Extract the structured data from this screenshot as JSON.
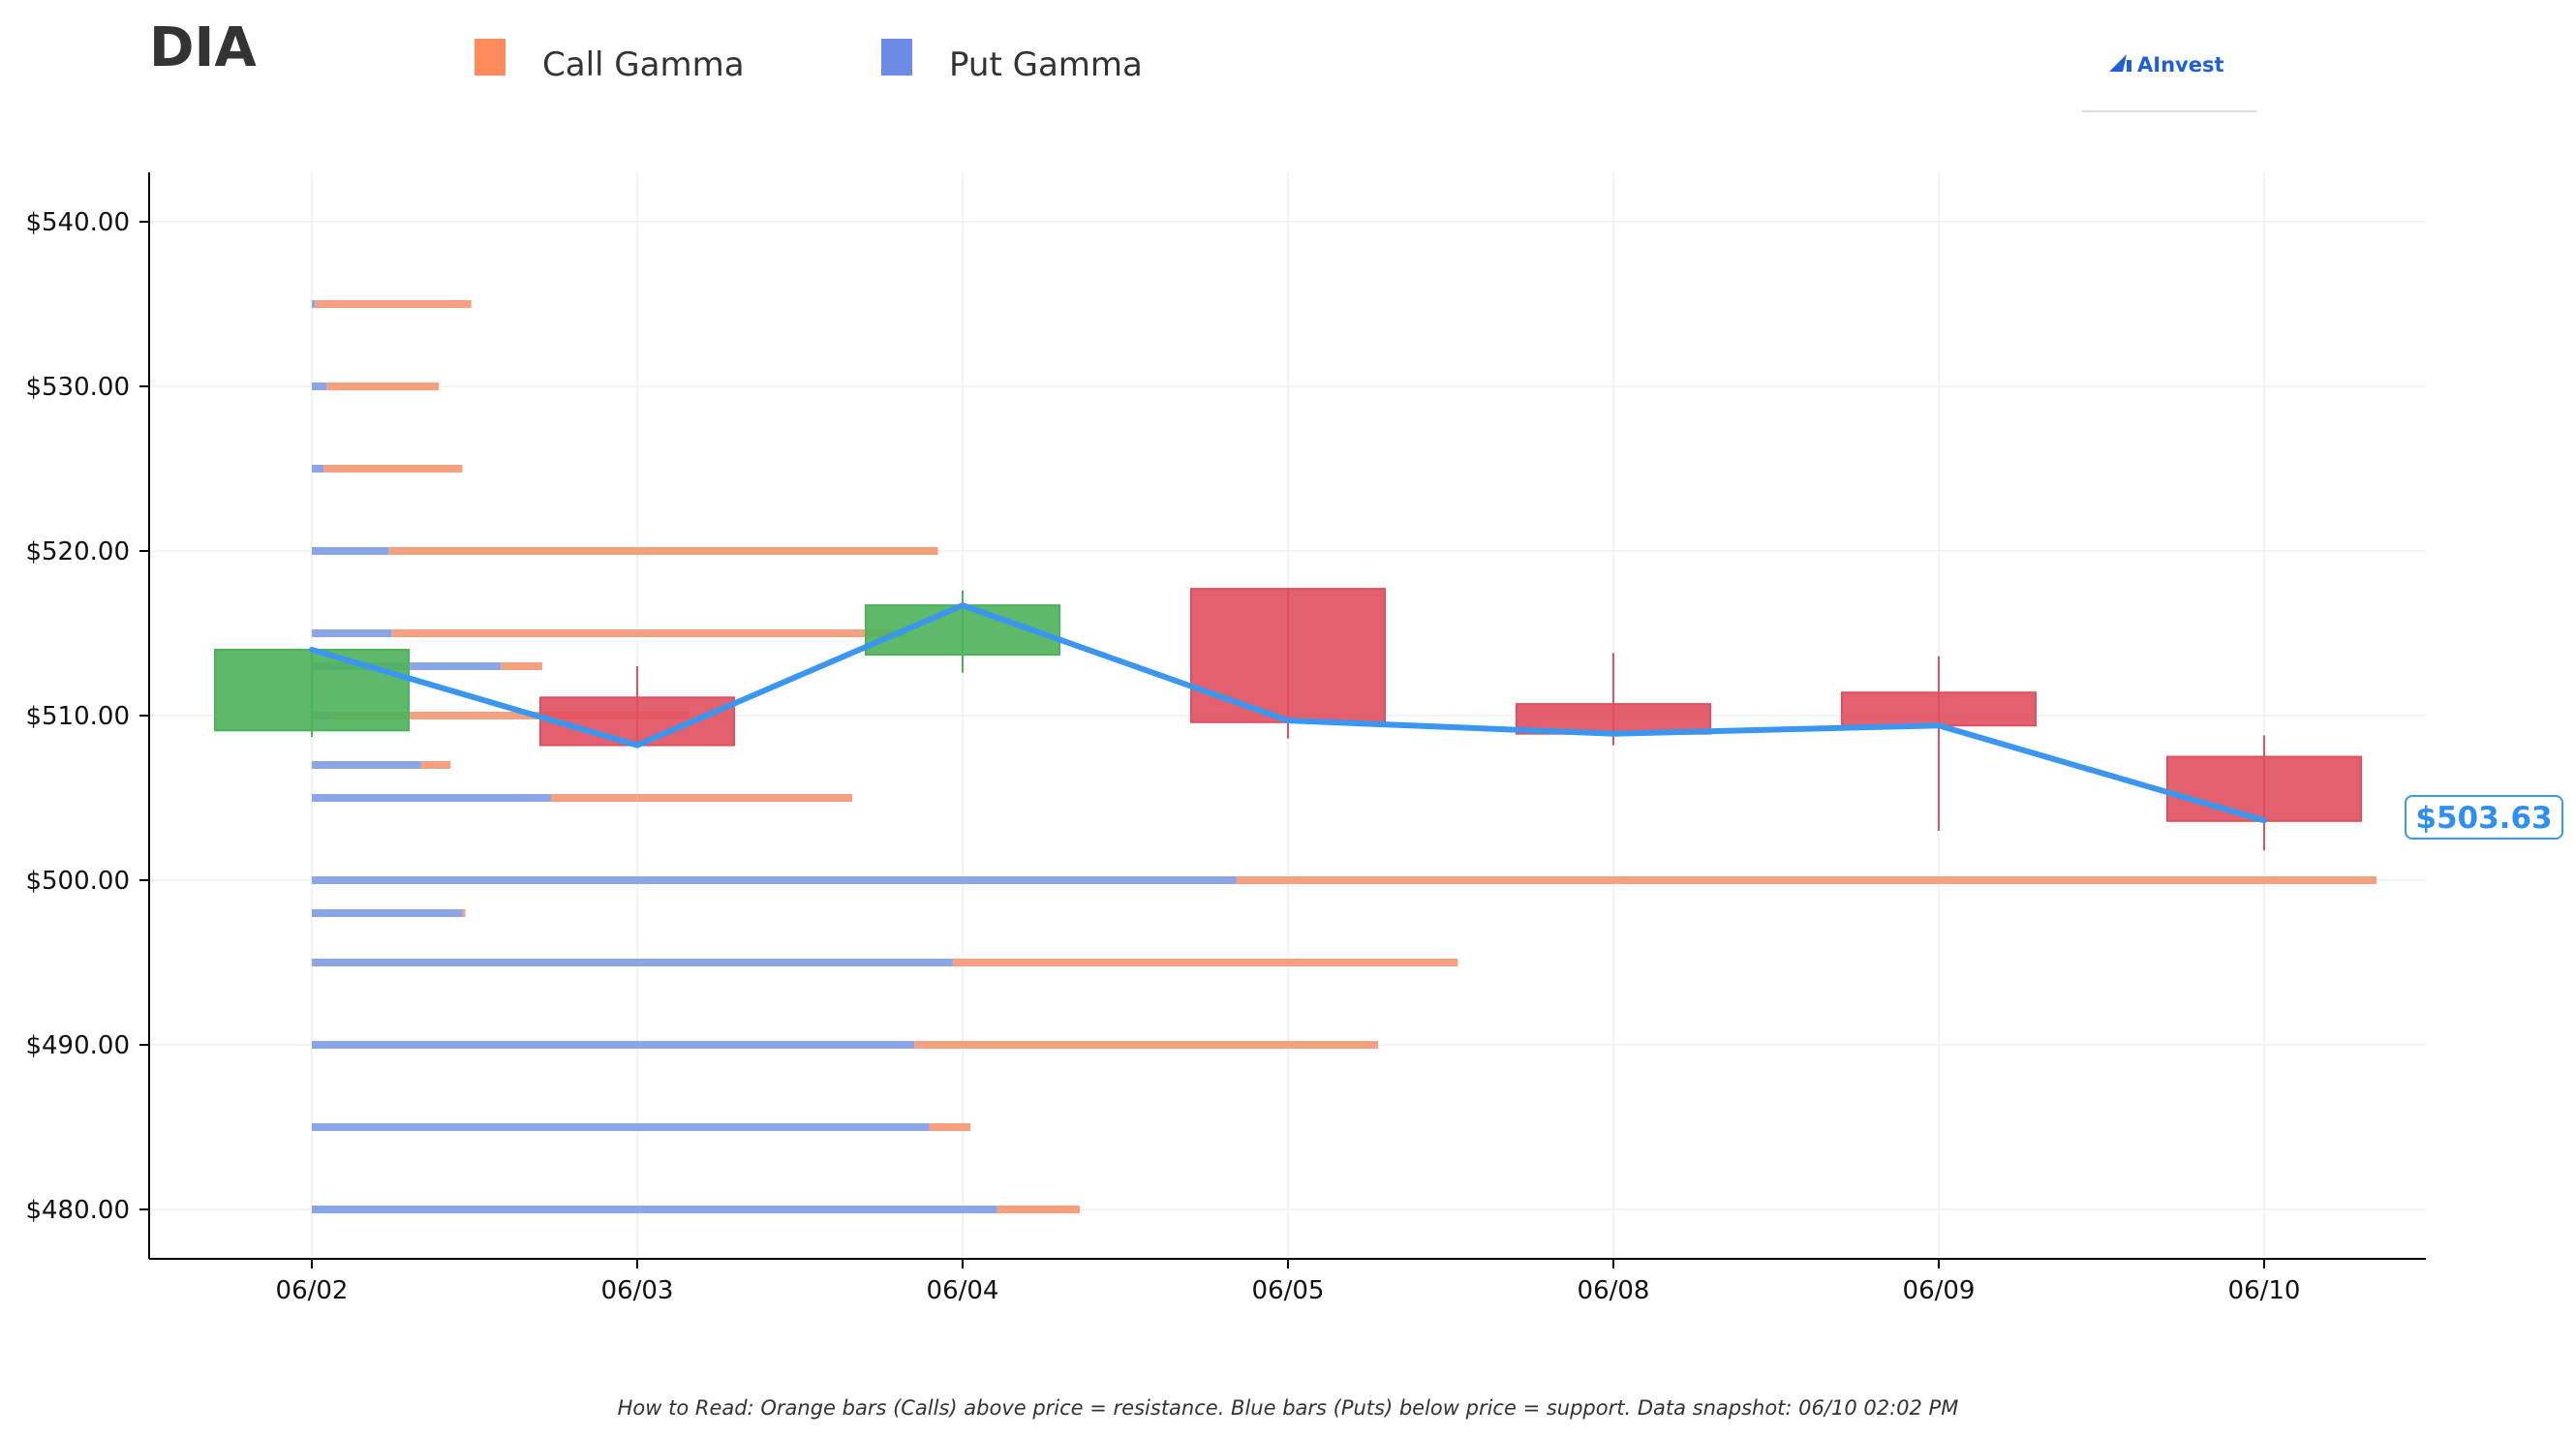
{
  "title": "DIA",
  "legend": [
    {
      "label": "Call Gamma",
      "color": "#ff8a5c"
    },
    {
      "label": "Put Gamma",
      "color": "#6b8be6"
    }
  ],
  "logo": {
    "text": "AInvest",
    "color": "#1f5fd6"
  },
  "footnote": "How to Read: Orange bars (Calls) above price = resistance. Blue bars (Puts) below price = support. Data snapshot: 06/10 02:02 PM",
  "current_price_label": "$503.63",
  "colors": {
    "up": "#4cb35a",
    "down": "#e0505f",
    "line": "#3b96f0",
    "call": "#f7a07f",
    "put": "#8aa5e8"
  },
  "chart_data": {
    "type": "candlestick",
    "title": "DIA",
    "x": [
      "06/02",
      "06/03",
      "06/04",
      "06/05",
      "06/08",
      "06/09",
      "06/10"
    ],
    "ylim": [
      477,
      543
    ],
    "yticks": [
      480,
      490,
      500,
      510,
      520,
      530,
      540
    ],
    "ytick_labels": [
      "$480.00",
      "$490.00",
      "$500.00",
      "$510.00",
      "$520.00",
      "$530.00",
      "$540.00"
    ],
    "candles": [
      {
        "date": "06/02",
        "open": 509.1,
        "high": 514.0,
        "low": 508.7,
        "close": 514.0
      },
      {
        "date": "06/03",
        "open": 511.1,
        "high": 513.0,
        "low": 508.1,
        "close": 508.2
      },
      {
        "date": "06/04",
        "open": 513.7,
        "high": 517.6,
        "low": 512.6,
        "close": 516.7
      },
      {
        "date": "06/05",
        "open": 517.7,
        "high": 517.7,
        "low": 508.6,
        "close": 509.6
      },
      {
        "date": "06/08",
        "open": 510.7,
        "high": 513.8,
        "low": 508.2,
        "close": 508.9
      },
      {
        "date": "06/09",
        "open": 511.4,
        "high": 513.6,
        "low": 503.0,
        "close": 509.4
      },
      {
        "date": "06/10",
        "open": 507.5,
        "high": 508.8,
        "low": 501.8,
        "close": 503.6
      }
    ],
    "close_line": [
      514.0,
      508.2,
      516.7,
      509.7,
      508.9,
      509.4,
      503.63
    ],
    "gamma_series": [
      {
        "name": "Call Gamma",
        "strikes": [
          535,
          530,
          525,
          520,
          515,
          513,
          510,
          507,
          505,
          500,
          498,
          495,
          490,
          485,
          480
        ],
        "values": [
          0.53,
          0.38,
          0.47,
          1.86,
          1.74,
          0.14,
          1.22,
          0.1,
          1.02,
          3.86,
          0.01,
          1.71,
          1.57,
          0.14,
          0.28
        ]
      },
      {
        "name": "Put Gamma",
        "strikes": [
          535,
          530,
          525,
          520,
          515,
          513,
          510,
          507,
          505,
          500,
          498,
          495,
          490,
          485,
          480
        ],
        "values": [
          0.01,
          0.05,
          0.04,
          0.26,
          0.27,
          0.64,
          0.06,
          0.37,
          0.81,
          3.13,
          0.51,
          2.17,
          2.04,
          2.09,
          2.32
        ]
      }
    ],
    "grid": true,
    "legend_position": "top"
  }
}
